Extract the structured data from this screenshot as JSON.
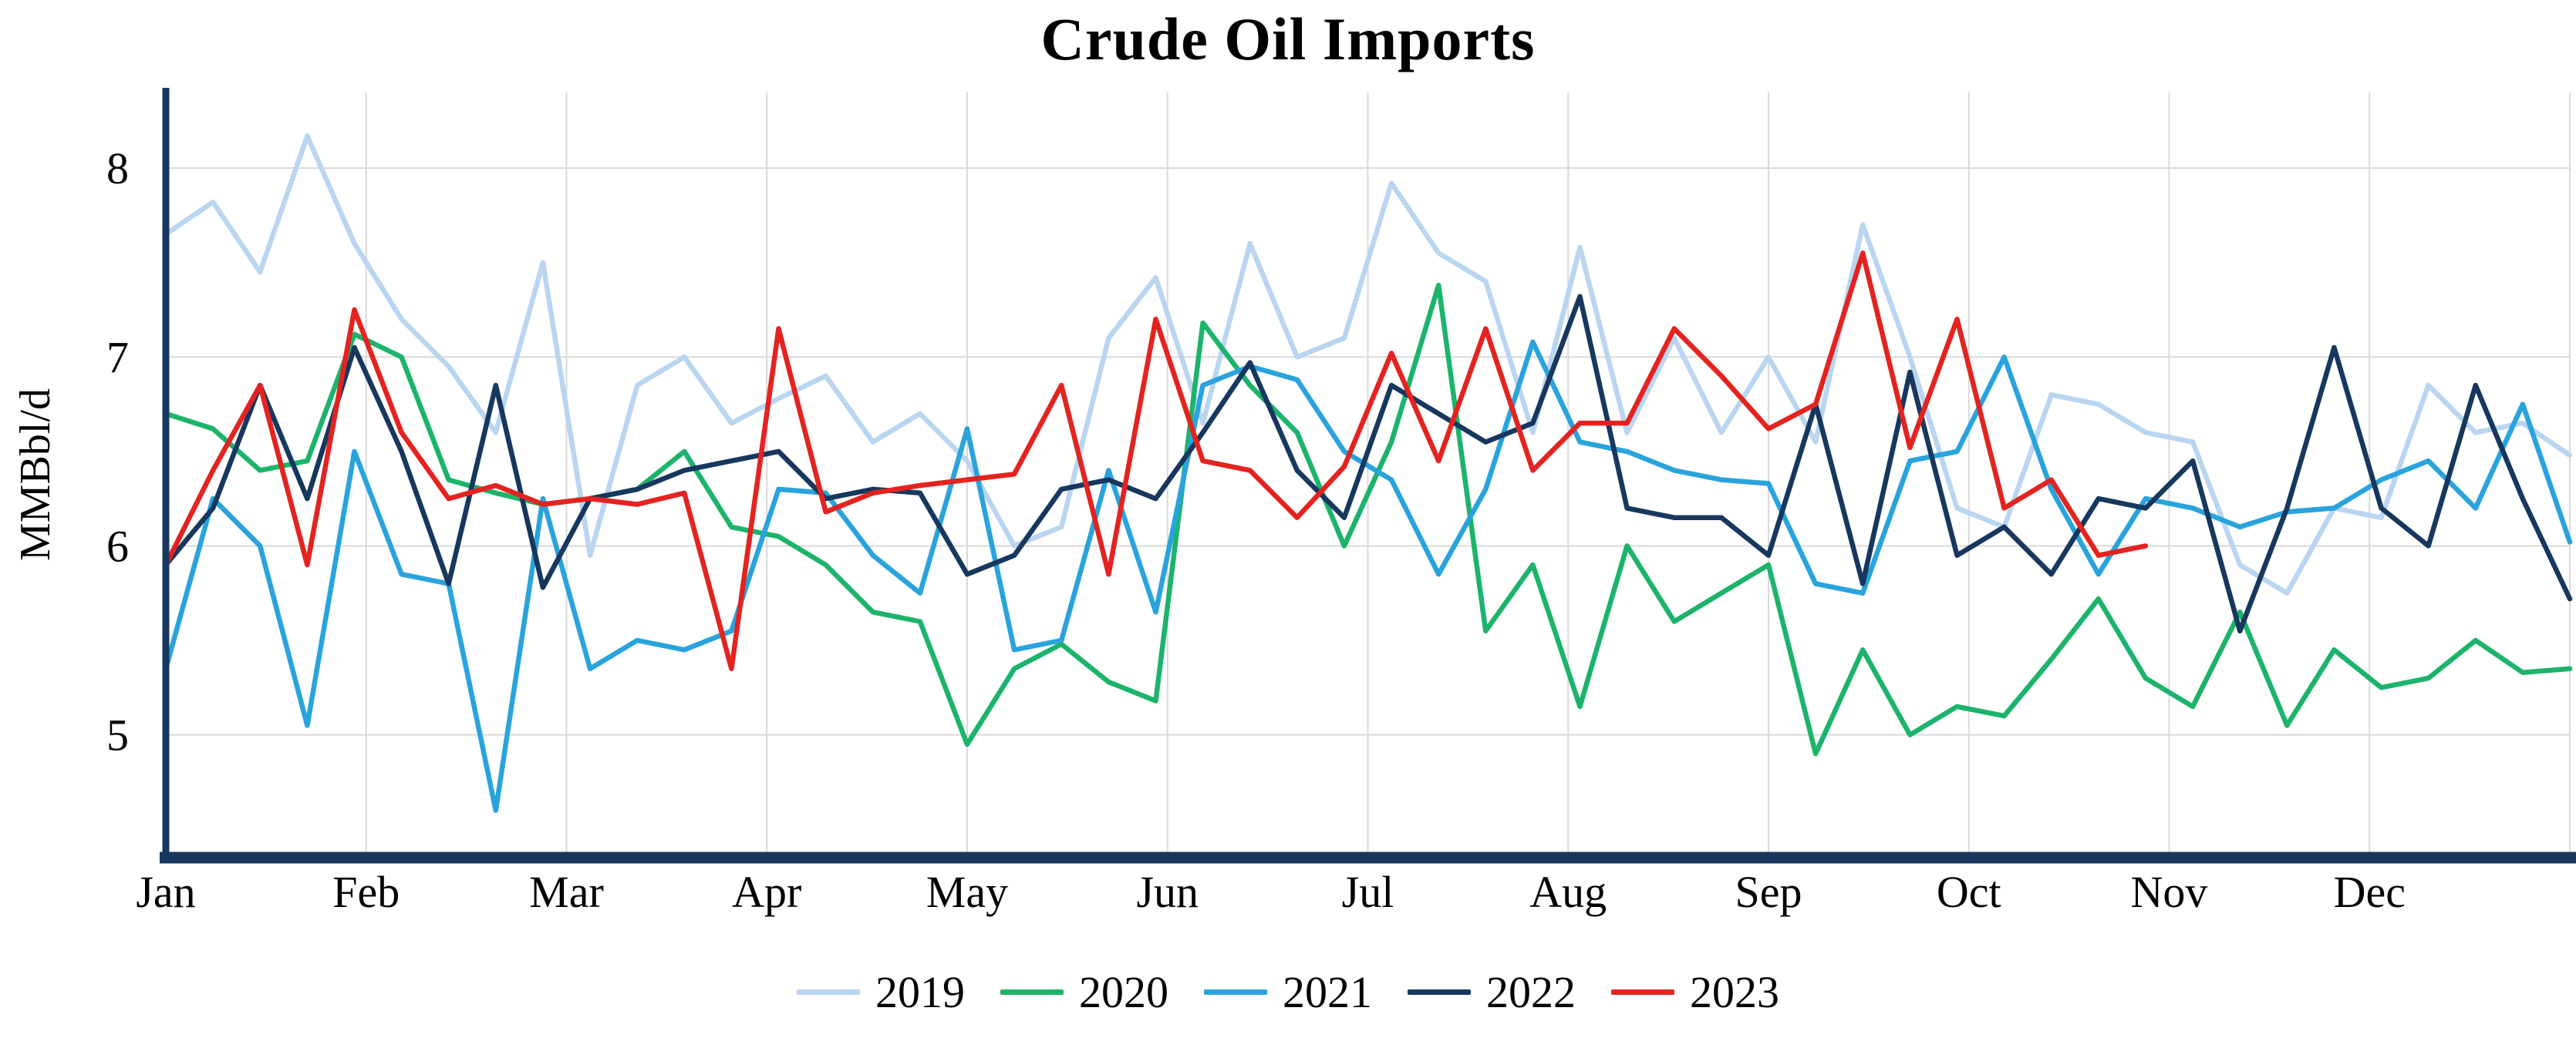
{
  "chart_data": {
    "type": "line",
    "title": "Crude Oil Imports",
    "xlabel": "",
    "ylabel": "MMBbl/d",
    "x_unit": "week-of-year",
    "months": [
      "Jan",
      "Feb",
      "Mar",
      "Apr",
      "May",
      "Jun",
      "Jul",
      "Aug",
      "Sep",
      "Oct",
      "Nov",
      "Dec"
    ],
    "yticks": [
      5,
      6,
      7,
      8
    ],
    "ylim": [
      4.35,
      8.4
    ],
    "weeks_per_year": 52,
    "grid": true,
    "legend_position": "bottom",
    "series": [
      {
        "name": "2019",
        "color": "#b9d5f0",
        "values": [
          7.65,
          7.82,
          7.45,
          8.17,
          7.6,
          7.2,
          6.95,
          6.6,
          7.5,
          5.95,
          6.85,
          7.0,
          6.65,
          6.78,
          6.9,
          6.55,
          6.7,
          6.45,
          6.0,
          6.1,
          7.1,
          7.42,
          6.65,
          7.6,
          7.0,
          7.1,
          7.92,
          7.55,
          7.4,
          6.6,
          7.58,
          6.6,
          7.1,
          6.6,
          7.0,
          6.55,
          7.7,
          7.0,
          6.2,
          6.1,
          6.8,
          6.75,
          6.6,
          6.55,
          5.9,
          5.75,
          6.2,
          6.15,
          6.85,
          6.6,
          6.65,
          6.48
        ]
      },
      {
        "name": "2020",
        "color": "#1cb36b",
        "values": [
          6.7,
          6.62,
          6.4,
          6.45,
          7.12,
          7.0,
          6.35,
          6.28,
          6.22,
          6.25,
          6.3,
          6.5,
          6.1,
          6.05,
          5.9,
          5.65,
          5.6,
          4.95,
          5.35,
          5.48,
          5.28,
          5.18,
          7.18,
          6.85,
          6.6,
          6.0,
          6.55,
          7.38,
          5.55,
          5.9,
          5.15,
          6.0,
          5.6,
          5.75,
          5.9,
          4.9,
          5.45,
          5.0,
          5.15,
          5.1,
          5.4,
          5.72,
          5.3,
          5.15,
          5.65,
          5.05,
          5.45,
          5.25,
          5.3,
          5.5,
          5.33,
          5.35
        ]
      },
      {
        "name": "2021",
        "color": "#29a3dc",
        "values": [
          5.35,
          6.25,
          6.0,
          5.05,
          6.5,
          5.85,
          5.8,
          4.6,
          6.25,
          5.35,
          5.5,
          5.45,
          5.55,
          6.3,
          6.28,
          5.95,
          5.75,
          6.62,
          5.45,
          5.5,
          6.4,
          5.65,
          6.85,
          6.95,
          6.88,
          6.5,
          6.35,
          5.85,
          6.3,
          7.08,
          6.55,
          6.5,
          6.4,
          6.35,
          6.33,
          5.8,
          5.75,
          6.45,
          6.5,
          7.0,
          6.3,
          5.85,
          6.25,
          6.2,
          6.1,
          6.18,
          6.2,
          6.35,
          6.45,
          6.2,
          6.75,
          6.02
        ]
      },
      {
        "name": "2022",
        "color": "#17375e",
        "values": [
          5.9,
          6.2,
          6.85,
          6.25,
          7.05,
          6.5,
          5.8,
          6.85,
          5.78,
          6.25,
          6.3,
          6.4,
          6.45,
          6.5,
          6.25,
          6.3,
          6.28,
          5.85,
          5.95,
          6.3,
          6.35,
          6.25,
          6.6,
          6.97,
          6.4,
          6.15,
          6.85,
          6.7,
          6.55,
          6.65,
          7.32,
          6.2,
          6.15,
          6.15,
          5.95,
          6.75,
          5.8,
          6.92,
          5.95,
          6.1,
          5.85,
          6.25,
          6.2,
          6.45,
          5.55,
          6.2,
          7.05,
          6.2,
          6.0,
          6.85,
          6.25,
          5.72
        ]
      },
      {
        "name": "2023",
        "color": "#e42320",
        "values": [
          5.9,
          6.4,
          6.85,
          5.9,
          7.25,
          6.6,
          6.25,
          6.32,
          6.22,
          6.25,
          6.22,
          6.28,
          5.35,
          7.15,
          6.18,
          6.28,
          6.32,
          6.35,
          6.38,
          6.85,
          5.85,
          7.2,
          6.45,
          6.4,
          6.15,
          6.42,
          7.02,
          6.45,
          7.15,
          6.4,
          6.65,
          6.65,
          7.15,
          6.9,
          6.62,
          6.75,
          7.55,
          6.52,
          7.2,
          6.2,
          6.35,
          5.95,
          6.0
        ]
      }
    ]
  },
  "styles": {
    "axis_color": "#17375e",
    "grid_color": "#d9d9d9",
    "background": "#ffffff",
    "text_color": "#000000"
  }
}
